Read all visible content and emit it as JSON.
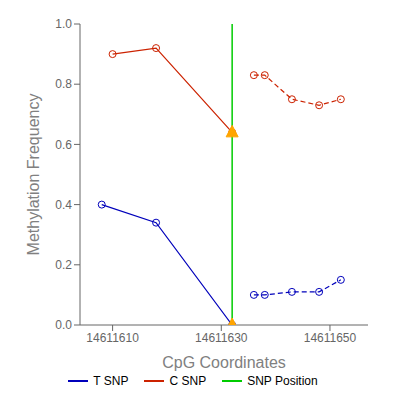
{
  "chart_data": {
    "type": "line",
    "xlabel": "CpG Coordinates",
    "ylabel": "Methylation Frequency",
    "xlim": [
      14611604,
      14611657
    ],
    "xticks": [
      14611610,
      14611630,
      14611650
    ],
    "ylim": [
      0.0,
      1.0
    ],
    "yticks": [
      {
        "value": 0.0,
        "label": "0.0"
      },
      0.2,
      0.4,
      0.6,
      0.8,
      {
        "value": 1.0,
        "label": "1.0"
      }
    ],
    "grid": false,
    "legend": "bottom",
    "series": [
      {
        "name": "T SNP",
        "color": "#0000bb",
        "marker": "circle",
        "segments": [
          {
            "line_style": "solid",
            "x": [
              14611608,
              14611618,
              14611632
            ],
            "values": [
              0.4,
              0.34,
              0.0
            ]
          },
          {
            "line_style": "dashed",
            "x": [
              14611636,
              14611638,
              14611643,
              14611648,
              14611652
            ],
            "values": [
              0.1,
              0.1,
              0.11,
              0.11,
              0.15
            ]
          }
        ]
      },
      {
        "name": "C SNP",
        "color": "#cc2200",
        "marker": "circle",
        "segments": [
          {
            "line_style": "solid",
            "x": [
              14611610,
              14611618,
              14611632
            ],
            "values": [
              0.9,
              0.92,
              0.64
            ]
          },
          {
            "line_style": "dashed",
            "x": [
              14611636,
              14611638,
              14611643,
              14611648,
              14611652
            ],
            "values": [
              0.83,
              0.83,
              0.75,
              0.73,
              0.75
            ]
          }
        ]
      }
    ],
    "vlines": [
      {
        "name": "SNP Position",
        "x": 14611632,
        "color": "#00cc00"
      }
    ],
    "points": {
      "x": 14611632,
      "values": [
        0.0,
        0.64
      ],
      "color": "#FFA500",
      "marker": "triangle"
    }
  }
}
